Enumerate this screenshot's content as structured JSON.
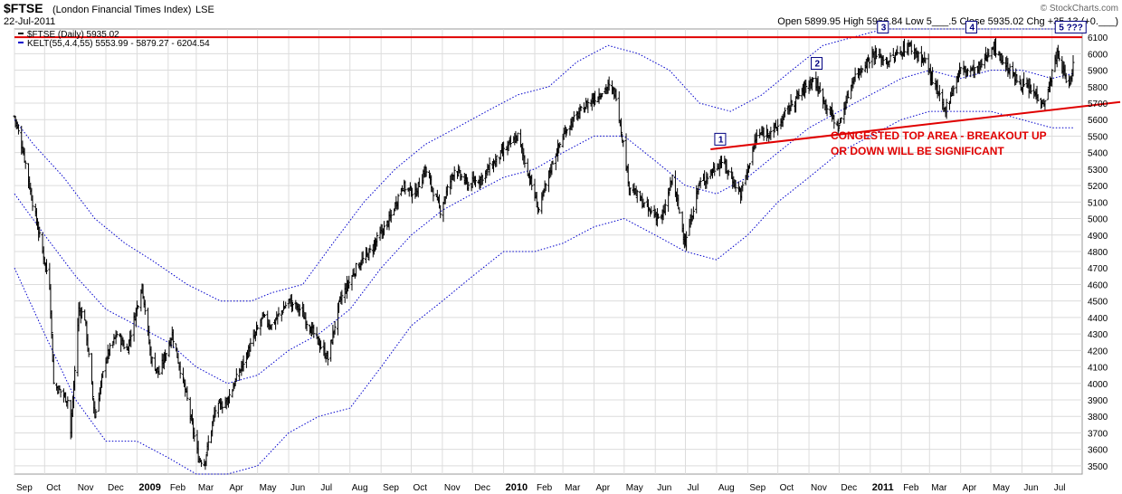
{
  "header": {
    "symbol": "$FTSE",
    "name": "(London Financial Times Index)",
    "exchange": "LSE",
    "date": "22-Jul-2011",
    "legend_price": "$FTSE (Daily) 5935.02",
    "legend_kelt": "KELT(55,4.4,55) 5553.99 - 5879.27 - 6204.54",
    "ohlc": "Open 5899.95  High 5966.84  Low 5___.5  Close 5935.02  Chg +35.13 (+0.___)",
    "brand": "© StockCharts.com"
  },
  "annotation": {
    "line1": "CONGESTED TOP AREA - BREAKOUT UP",
    "line2": "OR DOWN WILL BE SIGNIFICANT"
  },
  "markers": [
    "1",
    "2",
    "3",
    "4",
    "5 ???"
  ],
  "colors": {
    "price": "#000000",
    "channel": "#0000cc",
    "annotation": "#e00000",
    "marker": "#000080"
  },
  "chart_data": {
    "type": "ohlc",
    "frequency": "daily",
    "ylim": [
      3450,
      6150
    ],
    "yticks": [
      3500,
      3600,
      3700,
      3800,
      3900,
      4000,
      4100,
      4200,
      4300,
      4400,
      4500,
      4600,
      4700,
      4800,
      4900,
      5000,
      5100,
      5200,
      5300,
      5400,
      5500,
      5600,
      5700,
      5800,
      5900,
      6000,
      6100
    ],
    "y_axis_position": "right",
    "xlim": [
      "2008-09-01",
      "2011-07-31"
    ],
    "months": [
      {
        "label": "Sep",
        "date": "2008-09-01",
        "bold": false
      },
      {
        "label": "Oct",
        "date": "2008-10-01",
        "bold": false
      },
      {
        "label": "Nov",
        "date": "2008-11-01",
        "bold": false
      },
      {
        "label": "Dec",
        "date": "2008-12-01",
        "bold": false
      },
      {
        "label": "2009",
        "date": "2009-01-01",
        "bold": true
      },
      {
        "label": "Feb",
        "date": "2009-02-01",
        "bold": false
      },
      {
        "label": "Mar",
        "date": "2009-03-01",
        "bold": false
      },
      {
        "label": "Apr",
        "date": "2009-04-01",
        "bold": false
      },
      {
        "label": "May",
        "date": "2009-05-01",
        "bold": false
      },
      {
        "label": "Jun",
        "date": "2009-06-01",
        "bold": false
      },
      {
        "label": "Jul",
        "date": "2009-07-01",
        "bold": false
      },
      {
        "label": "Aug",
        "date": "2009-08-01",
        "bold": false
      },
      {
        "label": "Sep",
        "date": "2009-09-01",
        "bold": false
      },
      {
        "label": "Oct",
        "date": "2009-10-01",
        "bold": false
      },
      {
        "label": "Nov",
        "date": "2009-11-01",
        "bold": false
      },
      {
        "label": "Dec",
        "date": "2009-12-01",
        "bold": false
      },
      {
        "label": "2010",
        "date": "2010-01-01",
        "bold": true
      },
      {
        "label": "Feb",
        "date": "2010-02-01",
        "bold": false
      },
      {
        "label": "Mar",
        "date": "2010-03-01",
        "bold": false
      },
      {
        "label": "Apr",
        "date": "2010-04-01",
        "bold": false
      },
      {
        "label": "May",
        "date": "2010-05-01",
        "bold": false
      },
      {
        "label": "Jun",
        "date": "2010-06-01",
        "bold": false
      },
      {
        "label": "Jul",
        "date": "2010-07-01",
        "bold": false
      },
      {
        "label": "Aug",
        "date": "2010-08-01",
        "bold": false
      },
      {
        "label": "Sep",
        "date": "2010-09-01",
        "bold": false
      },
      {
        "label": "Oct",
        "date": "2010-10-01",
        "bold": false
      },
      {
        "label": "Nov",
        "date": "2010-11-01",
        "bold": false
      },
      {
        "label": "Dec",
        "date": "2010-12-01",
        "bold": false
      },
      {
        "label": "2011",
        "date": "2011-01-01",
        "bold": true
      },
      {
        "label": "Feb",
        "date": "2011-02-01",
        "bold": false
      },
      {
        "label": "Mar",
        "date": "2011-03-01",
        "bold": false
      },
      {
        "label": "Apr",
        "date": "2011-04-01",
        "bold": false
      },
      {
        "label": "May",
        "date": "2011-05-01",
        "bold": false
      },
      {
        "label": "Jun",
        "date": "2011-06-01",
        "bold": false
      },
      {
        "label": "Jul",
        "date": "2011-07-01",
        "bold": false
      }
    ],
    "close_path": [
      [
        "2008-09-01",
        5620
      ],
      [
        "2008-09-10",
        5400
      ],
      [
        "2008-09-19",
        5100
      ],
      [
        "2008-09-29",
        4800
      ],
      [
        "2008-10-06",
        4600
      ],
      [
        "2008-10-10",
        4000
      ],
      [
        "2008-10-24",
        3900
      ],
      [
        "2008-10-27",
        3700
      ],
      [
        "2008-11-04",
        4450
      ],
      [
        "2008-11-10",
        4400
      ],
      [
        "2008-11-20",
        3800
      ],
      [
        "2008-12-01",
        4150
      ],
      [
        "2008-12-12",
        4300
      ],
      [
        "2008-12-22",
        4200
      ],
      [
        "2009-01-06",
        4600
      ],
      [
        "2009-01-15",
        4150
      ],
      [
        "2009-01-23",
        4060
      ],
      [
        "2009-02-05",
        4300
      ],
      [
        "2009-02-20",
        3900
      ],
      [
        "2009-03-03",
        3550
      ],
      [
        "2009-03-09",
        3520
      ],
      [
        "2009-03-20",
        3840
      ],
      [
        "2009-04-01",
        3900
      ],
      [
        "2009-04-15",
        4100
      ],
      [
        "2009-05-06",
        4400
      ],
      [
        "2009-05-15",
        4350
      ],
      [
        "2009-06-01",
        4500
      ],
      [
        "2009-06-12",
        4450
      ],
      [
        "2009-06-26",
        4300
      ],
      [
        "2009-07-10",
        4150
      ],
      [
        "2009-07-22",
        4500
      ],
      [
        "2009-08-07",
        4700
      ],
      [
        "2009-08-21",
        4800
      ],
      [
        "2009-09-10",
        5000
      ],
      [
        "2009-09-22",
        5200
      ],
      [
        "2009-10-05",
        5150
      ],
      [
        "2009-10-15",
        5300
      ],
      [
        "2009-10-30",
        5050
      ],
      [
        "2009-11-13",
        5300
      ],
      [
        "2009-11-27",
        5200
      ],
      [
        "2009-12-10",
        5250
      ],
      [
        "2009-12-31",
        5400
      ],
      [
        "2010-01-15",
        5500
      ],
      [
        "2010-01-29",
        5200
      ],
      [
        "2010-02-05",
        5050
      ],
      [
        "2010-02-19",
        5350
      ],
      [
        "2010-03-05",
        5550
      ],
      [
        "2010-03-26",
        5700
      ],
      [
        "2010-04-15",
        5800
      ],
      [
        "2010-04-23",
        5750
      ],
      [
        "2010-05-06",
        5200
      ],
      [
        "2010-05-25",
        5050
      ],
      [
        "2010-06-08",
        5000
      ],
      [
        "2010-06-18",
        5250
      ],
      [
        "2010-07-01",
        4850
      ],
      [
        "2010-07-14",
        5200
      ],
      [
        "2010-08-06",
        5350
      ],
      [
        "2010-08-25",
        5150
      ],
      [
        "2010-09-10",
        5500
      ],
      [
        "2010-09-30",
        5550
      ],
      [
        "2010-10-15",
        5700
      ],
      [
        "2010-11-05",
        5850
      ],
      [
        "2010-11-30",
        5550
      ],
      [
        "2010-12-15",
        5850
      ],
      [
        "2011-01-04",
        6000
      ],
      [
        "2011-01-18",
        5950
      ],
      [
        "2011-02-08",
        6050
      ],
      [
        "2011-02-25",
        5950
      ],
      [
        "2011-03-16",
        5650
      ],
      [
        "2011-03-31",
        5900
      ],
      [
        "2011-04-18",
        5900
      ],
      [
        "2011-05-03",
        6050
      ],
      [
        "2011-05-25",
        5850
      ],
      [
        "2011-06-15",
        5750
      ],
      [
        "2011-06-24",
        5700
      ],
      [
        "2011-07-06",
        6000
      ],
      [
        "2011-07-18",
        5800
      ],
      [
        "2011-07-22",
        5935
      ]
    ],
    "kelt_upper": [
      [
        "2008-09-01",
        5600
      ],
      [
        "2008-09-20",
        5450
      ],
      [
        "2008-10-20",
        5250
      ],
      [
        "2008-11-20",
        5000
      ],
      [
        "2008-12-20",
        4850
      ],
      [
        "2009-01-15",
        4750
      ],
      [
        "2009-02-20",
        4600
      ],
      [
        "2009-03-25",
        4500
      ],
      [
        "2009-04-25",
        4500
      ],
      [
        "2009-05-15",
        4550
      ],
      [
        "2009-06-15",
        4600
      ],
      [
        "2009-07-15",
        4850
      ],
      [
        "2009-08-15",
        5100
      ],
      [
        "2009-09-15",
        5300
      ],
      [
        "2009-10-15",
        5450
      ],
      [
        "2009-11-15",
        5550
      ],
      [
        "2009-12-15",
        5650
      ],
      [
        "2010-01-15",
        5750
      ],
      [
        "2010-02-15",
        5800
      ],
      [
        "2010-03-15",
        5950
      ],
      [
        "2010-04-15",
        6050
      ],
      [
        "2010-05-15",
        6000
      ],
      [
        "2010-06-15",
        5900
      ],
      [
        "2010-07-15",
        5700
      ],
      [
        "2010-08-15",
        5650
      ],
      [
        "2010-09-15",
        5750
      ],
      [
        "2010-10-15",
        5900
      ],
      [
        "2010-11-15",
        6050
      ],
      [
        "2010-12-15",
        6100
      ],
      [
        "2011-01-15",
        6150
      ],
      [
        "2011-02-15",
        6150
      ],
      [
        "2011-03-15",
        6150
      ],
      [
        "2011-07-22",
        6150
      ]
    ],
    "kelt_mid": [
      [
        "2008-09-01",
        5150
      ],
      [
        "2008-10-01",
        4900
      ],
      [
        "2008-11-01",
        4650
      ],
      [
        "2008-12-01",
        4450
      ],
      [
        "2009-01-01",
        4350
      ],
      [
        "2009-02-01",
        4250
      ],
      [
        "2009-03-01",
        4100
      ],
      [
        "2009-04-01",
        4000
      ],
      [
        "2009-05-01",
        4050
      ],
      [
        "2009-06-01",
        4200
      ],
      [
        "2009-07-01",
        4300
      ],
      [
        "2009-08-01",
        4450
      ],
      [
        "2009-09-01",
        4700
      ],
      [
        "2009-10-01",
        4900
      ],
      [
        "2009-11-01",
        5050
      ],
      [
        "2009-12-01",
        5150
      ],
      [
        "2010-01-01",
        5250
      ],
      [
        "2010-02-01",
        5300
      ],
      [
        "2010-03-01",
        5400
      ],
      [
        "2010-04-01",
        5500
      ],
      [
        "2010-05-01",
        5500
      ],
      [
        "2010-06-01",
        5350
      ],
      [
        "2010-07-01",
        5200
      ],
      [
        "2010-08-01",
        5150
      ],
      [
        "2010-09-01",
        5250
      ],
      [
        "2010-10-01",
        5400
      ],
      [
        "2010-11-01",
        5550
      ],
      [
        "2010-12-01",
        5650
      ],
      [
        "2011-01-01",
        5750
      ],
      [
        "2011-02-01",
        5850
      ],
      [
        "2011-03-01",
        5900
      ],
      [
        "2011-04-01",
        5850
      ],
      [
        "2011-05-01",
        5900
      ],
      [
        "2011-06-01",
        5900
      ],
      [
        "2011-07-01",
        5850
      ],
      [
        "2011-07-22",
        5880
      ]
    ],
    "kelt_lower": [
      [
        "2008-09-01",
        4700
      ],
      [
        "2008-10-01",
        4300
      ],
      [
        "2008-11-01",
        3900
      ],
      [
        "2008-12-01",
        3650
      ],
      [
        "2009-01-01",
        3650
      ],
      [
        "2009-02-01",
        3550
      ],
      [
        "2009-03-01",
        3450
      ],
      [
        "2009-04-01",
        3450
      ],
      [
        "2009-05-01",
        3500
      ],
      [
        "2009-06-01",
        3700
      ],
      [
        "2009-07-01",
        3800
      ],
      [
        "2009-08-01",
        3850
      ],
      [
        "2009-09-01",
        4100
      ],
      [
        "2009-10-01",
        4350
      ],
      [
        "2009-11-01",
        4500
      ],
      [
        "2009-12-01",
        4650
      ],
      [
        "2010-01-01",
        4800
      ],
      [
        "2010-02-01",
        4800
      ],
      [
        "2010-03-01",
        4850
      ],
      [
        "2010-04-01",
        4950
      ],
      [
        "2010-05-01",
        5000
      ],
      [
        "2010-06-01",
        4900
      ],
      [
        "2010-07-01",
        4800
      ],
      [
        "2010-08-01",
        4750
      ],
      [
        "2010-09-01",
        4900
      ],
      [
        "2010-10-01",
        5100
      ],
      [
        "2010-11-01",
        5250
      ],
      [
        "2010-12-01",
        5400
      ],
      [
        "2011-01-01",
        5500
      ],
      [
        "2011-02-01",
        5600
      ],
      [
        "2011-03-01",
        5650
      ],
      [
        "2011-04-01",
        5650
      ],
      [
        "2011-05-01",
        5650
      ],
      [
        "2011-06-01",
        5600
      ],
      [
        "2011-07-01",
        5550
      ],
      [
        "2011-07-22",
        5550
      ]
    ],
    "resistance_line": {
      "from": [
        "2008-09-01",
        6100
      ],
      "to": [
        "2011-07-31",
        6100
      ]
    },
    "support_line": {
      "from": [
        "2010-07-26",
        5420
      ],
      "to": [
        "2011-07-31",
        5680
      ]
    },
    "marker_points": [
      {
        "label": "1",
        "date": "2010-08-01",
        "value": 5440
      },
      {
        "label": "2",
        "date": "2010-11-05",
        "value": 5900
      },
      {
        "label": "3",
        "date": "2011-01-10",
        "value": 6120
      },
      {
        "label": "4",
        "date": "2011-04-08",
        "value": 6120
      },
      {
        "label": "5 ???",
        "date": "2011-07-06",
        "value": 6120
      }
    ]
  }
}
